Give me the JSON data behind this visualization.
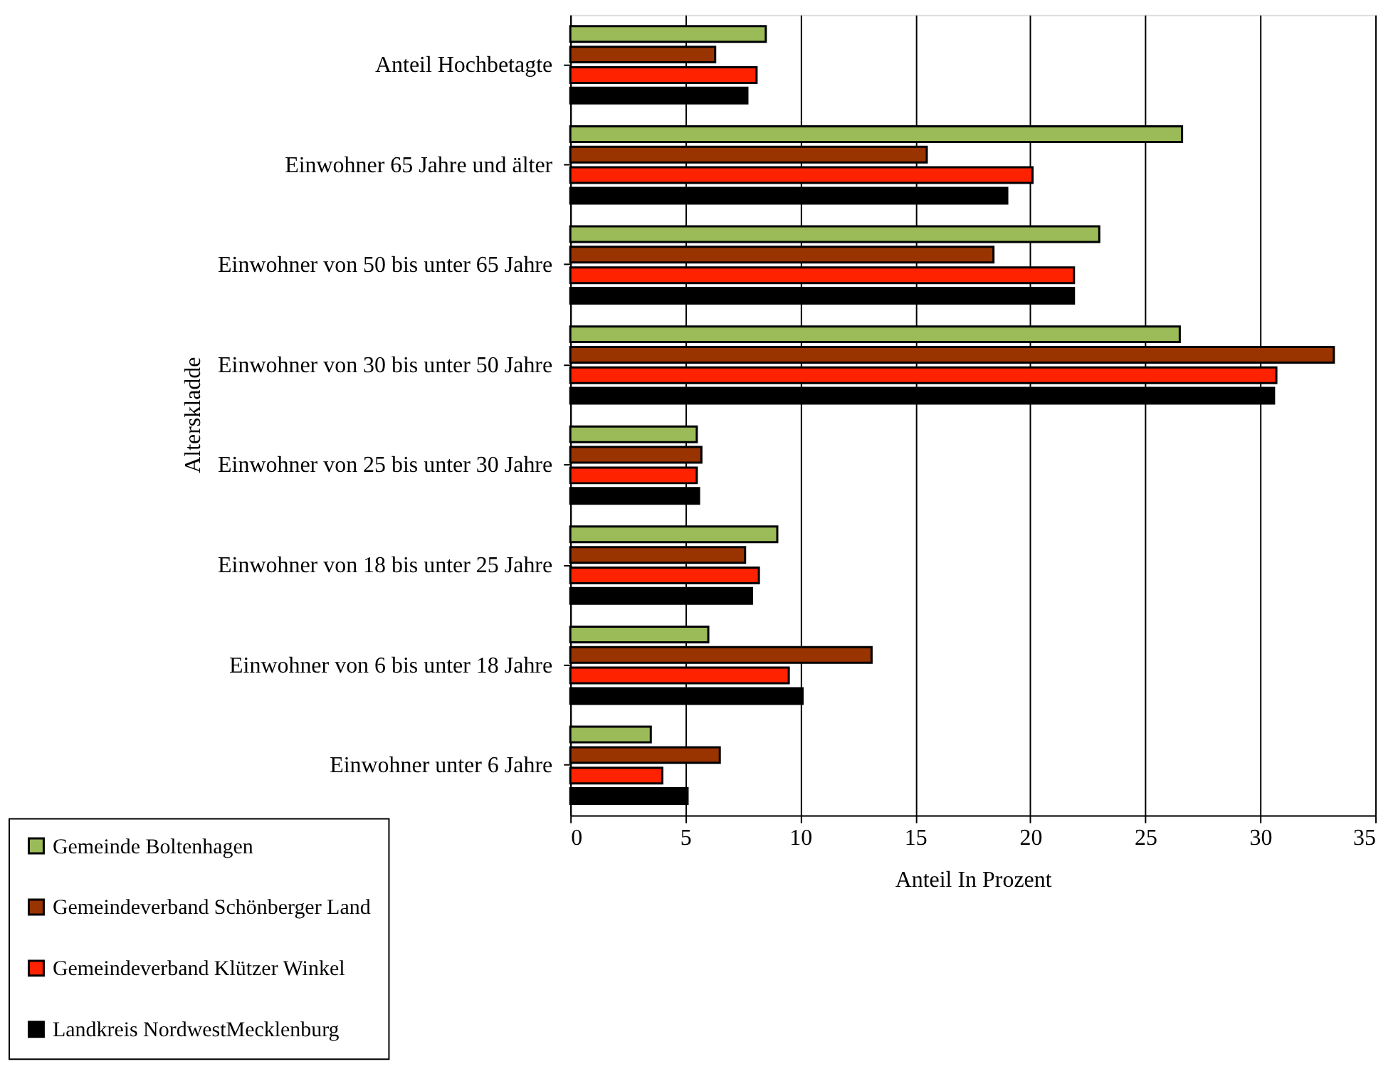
{
  "chart_data": {
    "type": "bar",
    "orientation": "horizontal",
    "xlabel": "Anteil In Prozent",
    "ylabel": "Alterskladde",
    "categories": [
      "Anteil Hochbetagte",
      "Einwohner 65 Jahre und älter",
      "Einwohner von 50 bis unter 65 Jahre",
      "Einwohner von 30 bis unter 50 Jahre",
      "Einwohner von 25 bis unter 30 Jahre",
      "Einwohner von 18 bis unter 25 Jahre",
      "Einwohner von 6 bis unter 18 Jahre",
      "Einwohner unter 6 Jahre"
    ],
    "series": [
      {
        "name": "Gemeinde Boltenhagen",
        "color": "#9bbb59",
        "values": [
          8.5,
          26.6,
          23.0,
          26.5,
          5.5,
          9.0,
          6.0,
          3.5
        ]
      },
      {
        "name": "Gemeindeverband Schönberger Land",
        "color": "#993300",
        "values": [
          6.3,
          15.5,
          18.4,
          33.2,
          5.7,
          7.6,
          13.1,
          6.5
        ]
      },
      {
        "name": "Gemeindeverband Klützer Winkel",
        "color": "#ff2200",
        "values": [
          8.1,
          20.1,
          21.9,
          30.7,
          5.5,
          8.2,
          9.5,
          4.0
        ]
      },
      {
        "name": "Landkreis NordwestMecklenburg",
        "color": "#000000",
        "values": [
          7.7,
          19.0,
          21.9,
          30.6,
          5.6,
          7.9,
          10.1,
          5.1
        ]
      }
    ],
    "xlim": [
      0,
      35
    ],
    "xticks": [
      0,
      5,
      10,
      15,
      20,
      25,
      30,
      35
    ],
    "grid": "x",
    "legend": "bottom left"
  }
}
